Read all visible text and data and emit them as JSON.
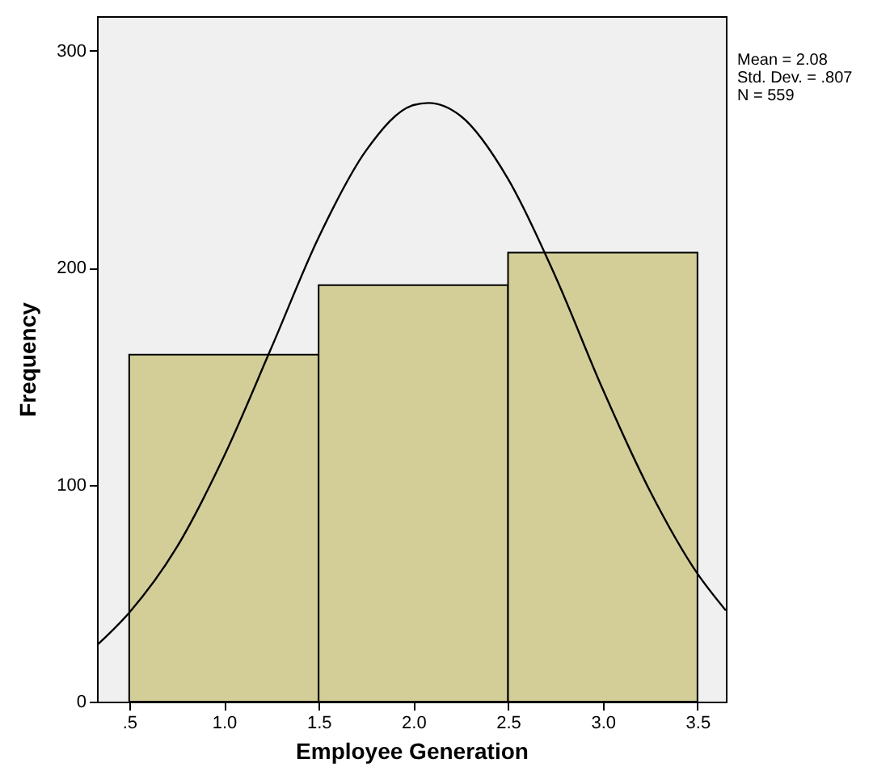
{
  "chart_data": {
    "type": "histogram",
    "xlabel": "Employee Generation",
    "ylabel": "Frequency",
    "bins": [
      0.5,
      1.5,
      2.5,
      3.5
    ],
    "values": [
      160,
      192,
      207
    ],
    "color": "#d3ce97",
    "series": [
      {
        "type": "line",
        "color": "#000000",
        "x": [
          0.33,
          0.5,
          0.75,
          1.0,
          1.25,
          1.5,
          1.75,
          2.0,
          2.08,
          2.25,
          2.5,
          2.75,
          3.0,
          3.25,
          3.5,
          3.65
        ],
        "values": [
          26,
          41,
          71,
          113,
          163,
          214,
          254,
          275,
          276,
          270,
          241,
          196,
          144,
          97,
          59,
          42
        ]
      }
    ],
    "xlim": [
      0.33,
      3.65
    ],
    "ylim": [
      0,
      316
    ],
    "xticks": [
      {
        "value": 0.5,
        "label": ".5"
      },
      {
        "value": 1.0,
        "label": "1.0"
      },
      {
        "value": 1.5,
        "label": "1.5"
      },
      {
        "value": 2.0,
        "label": "2.0"
      },
      {
        "value": 2.5,
        "label": "2.5"
      },
      {
        "value": 3.0,
        "label": "3.0"
      },
      {
        "value": 3.5,
        "label": "3.5"
      }
    ],
    "yticks": [
      0,
      100,
      200,
      300
    ],
    "annotations": [
      "Mean = 2.08",
      "Std. Dev. = .807",
      "N = 559"
    ]
  }
}
